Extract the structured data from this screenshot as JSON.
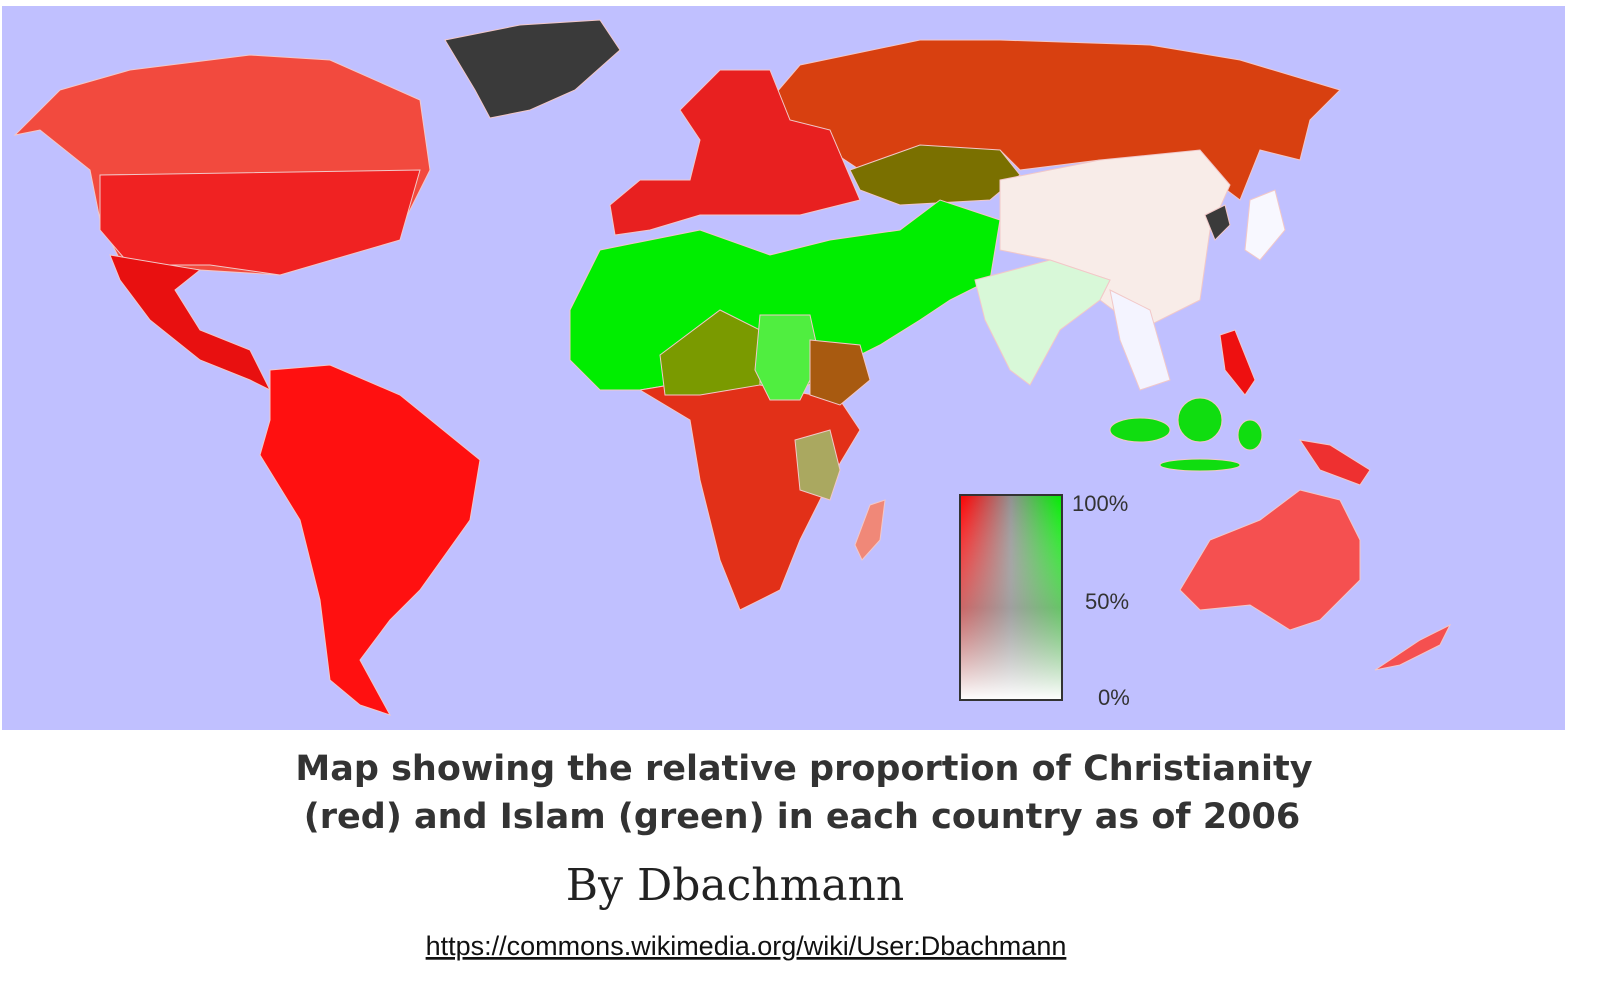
{
  "caption": {
    "lines": [
      "Map showing the relative proportion of Christianity",
      "(red) and Islam (green) in each country as of 2006"
    ]
  },
  "author": "By Dbachmann",
  "url": "https://commons.wikimedia.org/wiki/User:Dbachmann",
  "legend": {
    "labels": [
      "100%",
      "50%",
      "0%"
    ]
  }
}
